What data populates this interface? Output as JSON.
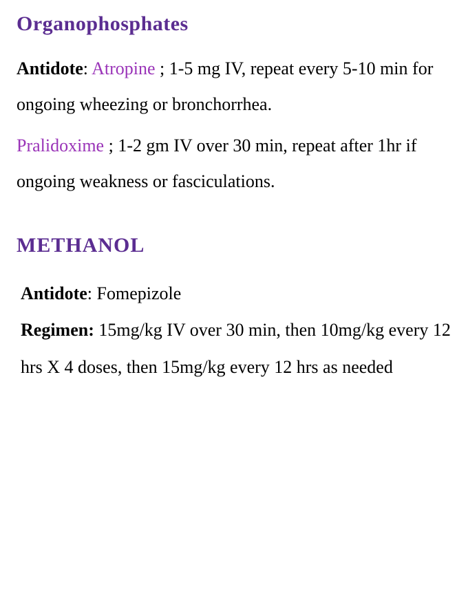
{
  "colors": {
    "heading": "#5b2d91",
    "drug": "#9a34b8",
    "text": "#000000",
    "background": "#ffffff"
  },
  "typography": {
    "heading_fontsize": 30,
    "body_fontsize": 26,
    "line_height": 2.0,
    "font_family": "Georgia, serif"
  },
  "sections": {
    "organophosphates": {
      "title": "Organophosphates",
      "antidote_label": "Antidote",
      "drug1": "Atropine",
      "drug1_dose": " ; 1-5 mg IV, repeat every 5-10 min for ongoing wheezing or bronchorrhea.",
      "drug2": "Pralidoxime",
      "drug2_dose": " ; 1-2 gm IV over 30 min, repeat after 1hr if ongoing weakness or fasciculations."
    },
    "methanol": {
      "title": "METHANOL",
      "antidote_label": "Antidote",
      "antidote_value": ": Fomepizole",
      "regimen_label": "Regimen:",
      "regimen_value": " 15mg/kg IV over 30 min, then 10mg/kg every 12 hrs X 4 doses, then 15mg/kg every 12 hrs as needed"
    }
  }
}
